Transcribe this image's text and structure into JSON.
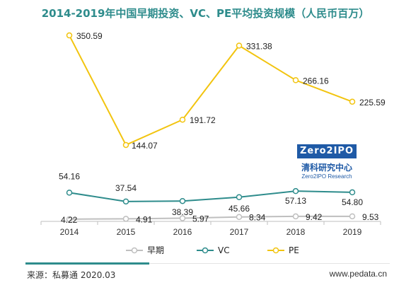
{
  "chart_data": {
    "type": "line",
    "title": "2014-2019年中国早期投资、VC、PE平均投资规模（人民币百万）",
    "x": [
      "2014",
      "2015",
      "2016",
      "2017",
      "2018",
      "2019"
    ],
    "series": [
      {
        "name": "早期",
        "values": [
          4.22,
          4.91,
          5.97,
          8.34,
          9.42,
          9.53
        ],
        "labels": [
          "4.22",
          "4.91",
          "5.97",
          "8.34",
          "9.42",
          "9.53"
        ],
        "color": "#bfbfbf"
      },
      {
        "name": "VC",
        "values": [
          54.16,
          37.54,
          38.39,
          45.66,
          57.13,
          54.8
        ],
        "labels": [
          "54.16",
          "37.54",
          "38.39",
          "45.66",
          "57.13",
          "54.80"
        ],
        "color": "#2e8c8c"
      },
      {
        "name": "PE",
        "values": [
          350.59,
          144.07,
          191.72,
          331.38,
          266.16,
          225.59
        ],
        "labels": [
          "350.59",
          "144.07",
          "191.72",
          "331.38",
          "266.16",
          "225.59"
        ],
        "color": "#f2c40f"
      }
    ],
    "ylim": [
      0,
      400
    ],
    "grid": false,
    "legend": "bottom"
  },
  "footer": {
    "source": "来源：私募通 2020.03",
    "website": "www.pedata.cn"
  },
  "logo": {
    "badge": "Zero2IPO",
    "name_cn": "清科研究中心",
    "name_en": "Zero2IPO Research"
  }
}
